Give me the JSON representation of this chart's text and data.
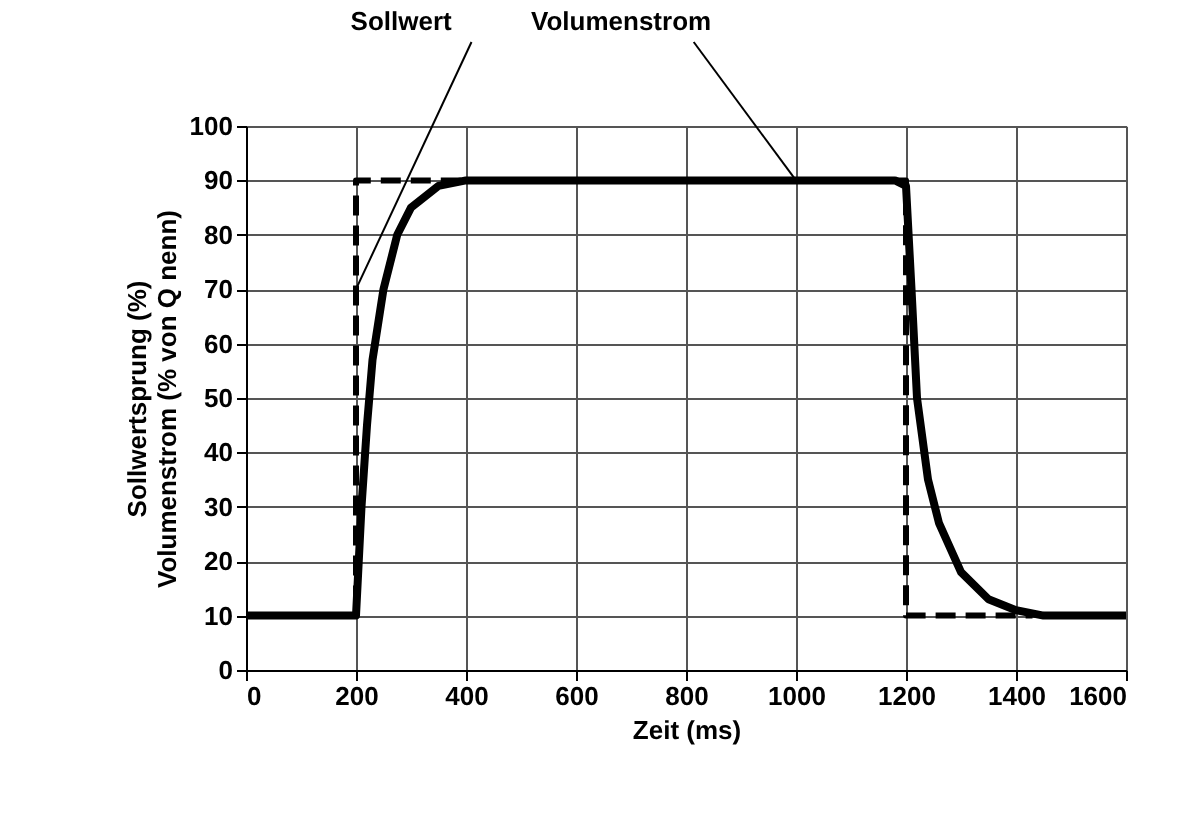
{
  "chart_data": {
    "type": "line",
    "xlabel": "Zeit (ms)",
    "ylabel": "Sollwertsprung (%)\nVolumenstrom (% von Q nenn)",
    "xlim": [
      0,
      1600
    ],
    "xticks": [
      0,
      200,
      400,
      600,
      800,
      1000,
      1200,
      1400,
      1600
    ],
    "ylim": [
      0,
      100
    ],
    "yticks": [
      0,
      10,
      20,
      30,
      40,
      50,
      60,
      70,
      80,
      90,
      100
    ],
    "grid": true,
    "annotations": [
      {
        "text": "Sollwert",
        "x": 200,
        "y": 70
      },
      {
        "text": "Volumenstrom",
        "x": 1000,
        "y": 90
      }
    ],
    "series": [
      {
        "color": "#000000",
        "line_style": "dashed",
        "x": [
          0,
          200,
          200,
          1200,
          1200,
          1430
        ],
        "values": [
          10,
          10,
          90,
          90,
          10,
          10
        ]
      },
      {
        "color": "#000000",
        "line_style": "solid",
        "x": [
          0,
          200,
          210,
          220,
          230,
          250,
          275,
          300,
          350,
          400,
          1000,
          1180,
          1200,
          1210,
          1220,
          1240,
          1260,
          1300,
          1350,
          1400,
          1450,
          1600
        ],
        "values": [
          10,
          10,
          30,
          45,
          57,
          70,
          80,
          85,
          89,
          90,
          90,
          90,
          89,
          70,
          50,
          35,
          27,
          18,
          13,
          11,
          10,
          10
        ]
      }
    ]
  }
}
